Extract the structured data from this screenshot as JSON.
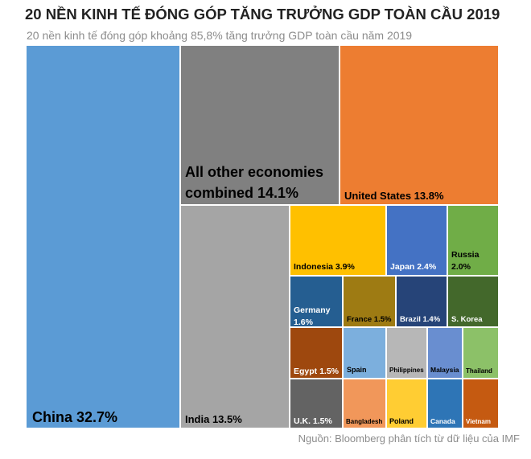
{
  "header": {
    "title": "20 NỀN KINH TẾ ĐÓNG GÓP TĂNG TRƯỞNG GDP TOÀN CẦU 2019",
    "subtitle": "20 nền kinh tế đóng góp khoảng 85,8% tăng trưởng GDP toàn cầu năm 2019"
  },
  "footer": {
    "source": "Nguồn: Bloomberg phân tích từ dữ liệu của IMF"
  },
  "chart_data": {
    "type": "treemap",
    "unit": "%",
    "items": [
      {
        "name": "China",
        "label": "China 32.7%",
        "value": 32.7,
        "color": "#5b9bd5",
        "text_color": "#000000"
      },
      {
        "name": "All other economies combined",
        "label": "All other economies combined 14.1%",
        "value": 14.1,
        "color": "#808080",
        "text_color": "#000000"
      },
      {
        "name": "United States",
        "label": "United States 13.8%",
        "value": 13.8,
        "color": "#ed7d31",
        "text_color": "#000000"
      },
      {
        "name": "India",
        "label": "India 13.5%",
        "value": 13.5,
        "color": "#a5a5a5",
        "text_color": "#000000"
      },
      {
        "name": "Indonesia",
        "label": "Indonesia 3.9%",
        "value": 3.9,
        "color": "#ffc000",
        "text_color": "#000000"
      },
      {
        "name": "Japan",
        "label": "Japan 2.4%",
        "value": 2.4,
        "color": "#4472c4",
        "text_color": "#ffffff"
      },
      {
        "name": "Russia",
        "label": "Russia 2.0%",
        "value": 2.0,
        "color": "#70ad47",
        "text_color": "#000000"
      },
      {
        "name": "Germany",
        "label": "Germany 1.6%",
        "value": 1.6,
        "color": "#255e91",
        "text_color": "#ffffff"
      },
      {
        "name": "France",
        "label": "France 1.5%",
        "value": 1.5,
        "color": "#9e7b13",
        "text_color": "#000000"
      },
      {
        "name": "Brazil",
        "label": "Brazil 1.4%",
        "value": 1.4,
        "color": "#264478",
        "text_color": "#ffffff"
      },
      {
        "name": "S. Korea",
        "label": "S. Korea",
        "value": null,
        "color": "#43682b",
        "text_color": "#ffffff"
      },
      {
        "name": "Egypt",
        "label": "Egypt 1.5%",
        "value": 1.5,
        "color": "#9e480e",
        "text_color": "#ffffff"
      },
      {
        "name": "U.K.",
        "label": "U.K. 1.5%",
        "value": 1.5,
        "color": "#636363",
        "text_color": "#ffffff"
      },
      {
        "name": "Spain",
        "label": "Spain",
        "value": null,
        "color": "#7cafdd",
        "text_color": "#000000"
      },
      {
        "name": "Philippines",
        "label": "Philippines",
        "value": null,
        "color": "#b7b7b7",
        "text_color": "#000000"
      },
      {
        "name": "Malaysia",
        "label": "Malaysia",
        "value": null,
        "color": "#698ed0",
        "text_color": "#000000"
      },
      {
        "name": "Thailand",
        "label": "Thailand",
        "value": null,
        "color": "#8cc168",
        "text_color": "#000000"
      },
      {
        "name": "Bangladesh",
        "label": "Bangladesh",
        "value": null,
        "color": "#f1975a",
        "text_color": "#000000"
      },
      {
        "name": "Poland",
        "label": "Poland",
        "value": null,
        "color": "#ffcd33",
        "text_color": "#000000"
      },
      {
        "name": "Canada",
        "label": "Canada",
        "value": null,
        "color": "#2e75b6",
        "text_color": "#ffffff"
      },
      {
        "name": "Vietnam",
        "label": "Vietnam",
        "value": null,
        "color": "#c55a11",
        "text_color": "#ffffff"
      }
    ]
  }
}
